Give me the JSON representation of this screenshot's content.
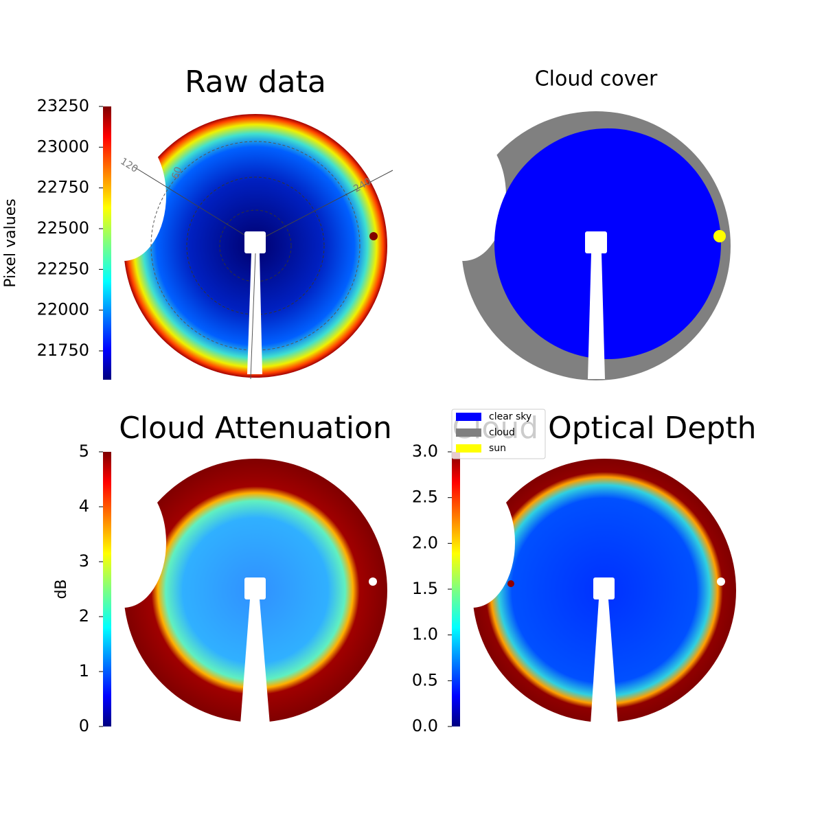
{
  "chart_data": [
    {
      "type": "image",
      "title": "Raw data",
      "colorbar_label": "Pixel values",
      "ylim": [
        21573,
        23250
      ],
      "yticks": [
        21750,
        22000,
        22250,
        22500,
        22750,
        23000,
        23250
      ],
      "annotations": [
        "120",
        "60",
        "240"
      ]
    },
    {
      "type": "classes",
      "title": "Cloud cover",
      "series": [
        {
          "name": "clear sky",
          "color": "#0000ff"
        },
        {
          "name": "cloud",
          "color": "#808080"
        },
        {
          "name": "sun",
          "color": "#ffff00"
        }
      ]
    },
    {
      "type": "image",
      "title": "Cloud Attenuation",
      "colorbar_label": "dB",
      "ylim": [
        0,
        5
      ],
      "yticks": [
        0,
        1,
        2,
        3,
        4,
        5
      ]
    },
    {
      "type": "image",
      "title": "Cloud Optical Depth",
      "ylim": [
        0,
        3
      ],
      "yticks": [
        {
          "value": 0,
          "label": "0.0"
        },
        0.5,
        {
          "value": 1,
          "label": "1.0"
        },
        1.5,
        {
          "value": 2,
          "label": "2.0"
        },
        2.5,
        {
          "value": 3,
          "label": "3.0"
        }
      ]
    }
  ]
}
